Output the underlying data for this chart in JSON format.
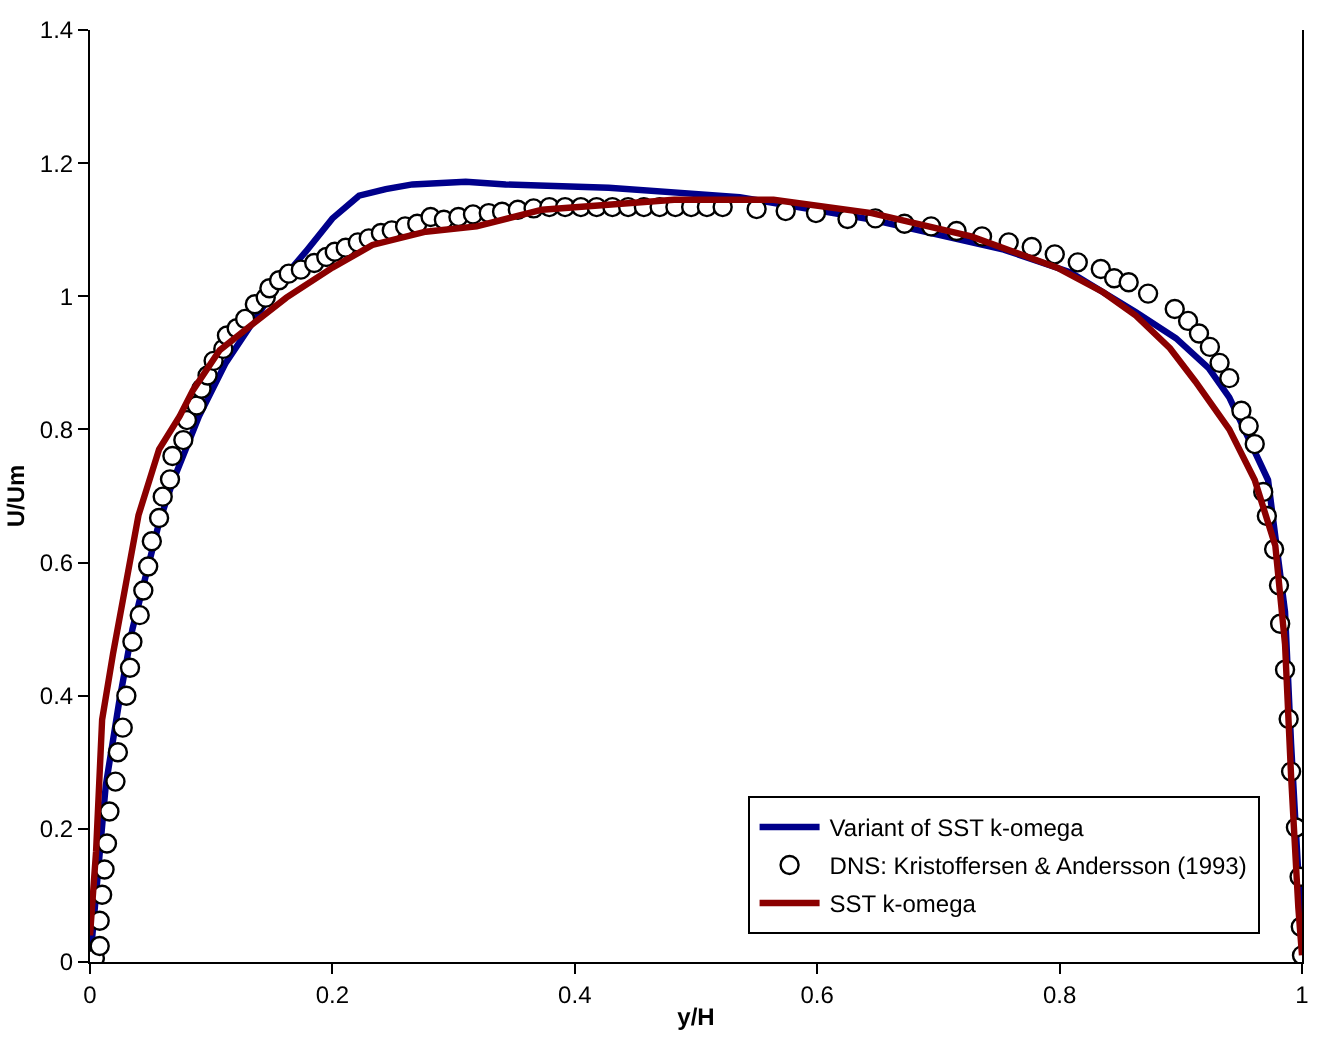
{
  "chart_data": {
    "type": "line",
    "xlabel": "y/H",
    "ylabel": "U/Um",
    "xlim": [
      0,
      1
    ],
    "ylim": [
      0,
      1.4
    ],
    "xticks": [
      0,
      0.2,
      0.4,
      0.6,
      0.8,
      1
    ],
    "yticks": [
      0,
      0.2,
      0.4,
      0.6,
      0.8,
      1,
      1.2,
      1.4
    ],
    "grid": false,
    "legend": "bottom right",
    "line_style": "solid",
    "series": [
      {
        "name": "Variant of SST k-omega",
        "color": "#00008b",
        "marker": "none",
        "x": [
          0,
          0.013,
          0.024,
          0.035,
          0.046,
          0.057,
          0.068,
          0.09,
          0.112,
          0.134,
          0.156,
          0.178,
          0.2,
          0.222,
          0.244,
          0.266,
          0.31,
          0.343,
          0.428,
          0.536,
          0.645,
          0.754,
          0.809,
          0.863,
          0.896,
          0.923,
          0.94,
          0.972,
          0.986,
          0.991,
          0.997,
          1.0
        ],
        "values": [
          0,
          0.265,
          0.39,
          0.5,
          0.58,
          0.66,
          0.72,
          0.82,
          0.9,
          0.96,
          1.02,
          1.067,
          1.117,
          1.151,
          1.161,
          1.168,
          1.172,
          1.168,
          1.163,
          1.149,
          1.115,
          1.07,
          1.036,
          0.976,
          0.937,
          0.892,
          0.848,
          0.724,
          0.526,
          0.328,
          0.131,
          0.022
        ]
      },
      {
        "name": "DNS: Kristoffersen & Andersson (1993)",
        "type": "scatter",
        "color": "#000000",
        "marker": "circle",
        "x": [
          0.004,
          0.008,
          0.008,
          0.01,
          0.012,
          0.014,
          0.016,
          0.021,
          0.023,
          0.027,
          0.03,
          0.033,
          0.035,
          0.041,
          0.044,
          0.048,
          0.051,
          0.057,
          0.06,
          0.066,
          0.068,
          0.077,
          0.08,
          0.088,
          0.092,
          0.097,
          0.102,
          0.11,
          0.113,
          0.121,
          0.128,
          0.136,
          0.145,
          0.148,
          0.156,
          0.164,
          0.174,
          0.185,
          0.195,
          0.202,
          0.211,
          0.221,
          0.23,
          0.24,
          0.249,
          0.26,
          0.27,
          0.281,
          0.292,
          0.304,
          0.316,
          0.329,
          0.34,
          0.353,
          0.366,
          0.379,
          0.392,
          0.405,
          0.418,
          0.431,
          0.444,
          0.457,
          0.47,
          0.483,
          0.496,
          0.509,
          0.522,
          0.55,
          0.574,
          0.599,
          0.625,
          0.648,
          0.672,
          0.694,
          0.715,
          0.736,
          0.758,
          0.777,
          0.796,
          0.815,
          0.834,
          0.845,
          0.857,
          0.873,
          0.895,
          0.906,
          0.915,
          0.924,
          0.932,
          0.94,
          0.95,
          0.956,
          0.961,
          0.968,
          0.971,
          0.977,
          0.981,
          0.982,
          0.986,
          0.989,
          0.991,
          0.995,
          0.998,
          0.999,
          1.0
        ],
        "values": [
          0.006,
          0.024,
          0.062,
          0.101,
          0.139,
          0.178,
          0.226,
          0.271,
          0.315,
          0.352,
          0.4,
          0.442,
          0.481,
          0.521,
          0.558,
          0.594,
          0.632,
          0.667,
          0.699,
          0.725,
          0.76,
          0.784,
          0.814,
          0.836,
          0.861,
          0.881,
          0.903,
          0.921,
          0.941,
          0.952,
          0.966,
          0.988,
          0.998,
          1.012,
          1.024,
          1.034,
          1.04,
          1.05,
          1.059,
          1.067,
          1.073,
          1.081,
          1.087,
          1.095,
          1.099,
          1.105,
          1.109,
          1.119,
          1.115,
          1.119,
          1.123,
          1.125,
          1.127,
          1.13,
          1.132,
          1.134,
          1.134,
          1.134,
          1.134,
          1.134,
          1.134,
          1.134,
          1.134,
          1.134,
          1.134,
          1.134,
          1.134,
          1.131,
          1.128,
          1.125,
          1.116,
          1.117,
          1.109,
          1.105,
          1.098,
          1.09,
          1.081,
          1.074,
          1.063,
          1.051,
          1.041,
          1.027,
          1.021,
          1.004,
          0.981,
          0.963,
          0.944,
          0.924,
          0.9,
          0.877,
          0.828,
          0.805,
          0.778,
          0.706,
          0.67,
          0.62,
          0.566,
          0.508,
          0.439,
          0.365,
          0.286,
          0.202,
          0.128,
          0.053,
          0.01
        ]
      },
      {
        "name": "SST k-omega",
        "color": "#8b0000",
        "marker": "none",
        "x": [
          0,
          0.005,
          0.01,
          0.019,
          0.03,
          0.04,
          0.057,
          0.074,
          0.085,
          0.107,
          0.134,
          0.162,
          0.2,
          0.233,
          0.277,
          0.319,
          0.373,
          0.482,
          0.564,
          0.645,
          0.727,
          0.798,
          0.836,
          0.863,
          0.891,
          0.912,
          0.94,
          0.961,
          0.978,
          0.986,
          0.991,
          0.997,
          1.0
        ],
        "values": [
          0.04,
          0.166,
          0.364,
          0.463,
          0.572,
          0.671,
          0.77,
          0.82,
          0.859,
          0.919,
          0.958,
          0.998,
          1.043,
          1.077,
          1.097,
          1.105,
          1.13,
          1.145,
          1.145,
          1.125,
          1.09,
          1.043,
          1.006,
          0.971,
          0.922,
          0.872,
          0.8,
          0.724,
          0.625,
          0.477,
          0.279,
          0.081,
          0.01
        ]
      }
    ]
  }
}
